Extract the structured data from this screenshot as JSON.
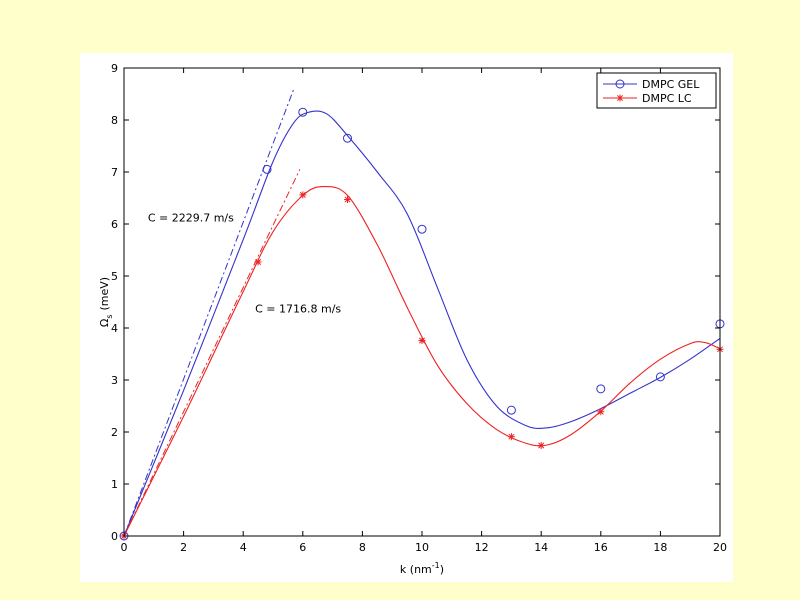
{
  "chart_data": {
    "type": "scatter",
    "title": "",
    "xlabel": "k (nm",
    "xlabel_sup": "-1",
    "xlabel_tail": ")",
    "ylabel": "Ω",
    "ylabel_sub": "s",
    "ylabel_tail": "(meV)",
    "xlim": [
      0,
      20
    ],
    "ylim": [
      0,
      9
    ],
    "xticks": [
      0,
      2,
      4,
      6,
      8,
      10,
      12,
      14,
      16,
      18,
      20
    ],
    "yticks": [
      0,
      1,
      2,
      3,
      4,
      5,
      6,
      7,
      8,
      9
    ],
    "grid": false,
    "legend_position": "top-right",
    "series": [
      {
        "name": "DMPC GEL",
        "marker": "circle",
        "color": "#3333cc",
        "points": [
          [
            0,
            0
          ],
          [
            4.8,
            7.05
          ],
          [
            6,
            8.15
          ],
          [
            7.5,
            7.65
          ],
          [
            10,
            5.9
          ],
          [
            13,
            2.42
          ],
          [
            16,
            2.83
          ],
          [
            18,
            3.06
          ],
          [
            20,
            4.08
          ]
        ],
        "fit_curve": [
          [
            0,
            0
          ],
          [
            2,
            2.8
          ],
          [
            4,
            5.7
          ],
          [
            5,
            7.2
          ],
          [
            5.7,
            7.95
          ],
          [
            6.2,
            8.15
          ],
          [
            6.8,
            8.12
          ],
          [
            7.5,
            7.7
          ],
          [
            8.5,
            7.0
          ],
          [
            9.5,
            6.2
          ],
          [
            10.5,
            4.8
          ],
          [
            11.5,
            3.4
          ],
          [
            12.5,
            2.5
          ],
          [
            13.5,
            2.12
          ],
          [
            14.2,
            2.08
          ],
          [
            15,
            2.2
          ],
          [
            16,
            2.45
          ],
          [
            17,
            2.75
          ],
          [
            18,
            3.05
          ],
          [
            19,
            3.4
          ],
          [
            20,
            3.8
          ]
        ],
        "slope_line": [
          [
            0,
            0
          ],
          [
            5.7,
            8.6
          ]
        ],
        "annotation": "C = 2229.7 m/s",
        "annotation_at": [
          0.8,
          6.05
        ]
      },
      {
        "name": "DMPC LC",
        "marker": "star",
        "color": "#ee2222",
        "points": [
          [
            0,
            0
          ],
          [
            4.5,
            5.27
          ],
          [
            6,
            6.56
          ],
          [
            7.5,
            6.47
          ],
          [
            10,
            3.76
          ],
          [
            13,
            1.91
          ],
          [
            14,
            1.74
          ],
          [
            16,
            2.39
          ],
          [
            20,
            3.59
          ]
        ],
        "fit_curve": [
          [
            0,
            0
          ],
          [
            2,
            2.3
          ],
          [
            4,
            4.7
          ],
          [
            5,
            5.85
          ],
          [
            6,
            6.55
          ],
          [
            6.7,
            6.72
          ],
          [
            7.5,
            6.55
          ],
          [
            8.5,
            5.6
          ],
          [
            9.5,
            4.4
          ],
          [
            10.5,
            3.3
          ],
          [
            11.5,
            2.55
          ],
          [
            12.5,
            2.05
          ],
          [
            13.5,
            1.78
          ],
          [
            14.2,
            1.75
          ],
          [
            15,
            1.95
          ],
          [
            16,
            2.4
          ],
          [
            17,
            2.95
          ],
          [
            18,
            3.4
          ],
          [
            19,
            3.7
          ],
          [
            19.5,
            3.72
          ],
          [
            20,
            3.6
          ]
        ],
        "slope_line": [
          [
            0,
            0
          ],
          [
            5.9,
            7.05
          ]
        ],
        "annotation": "C = 1716.8 m/s",
        "annotation_at": [
          4.4,
          4.3
        ]
      }
    ]
  }
}
